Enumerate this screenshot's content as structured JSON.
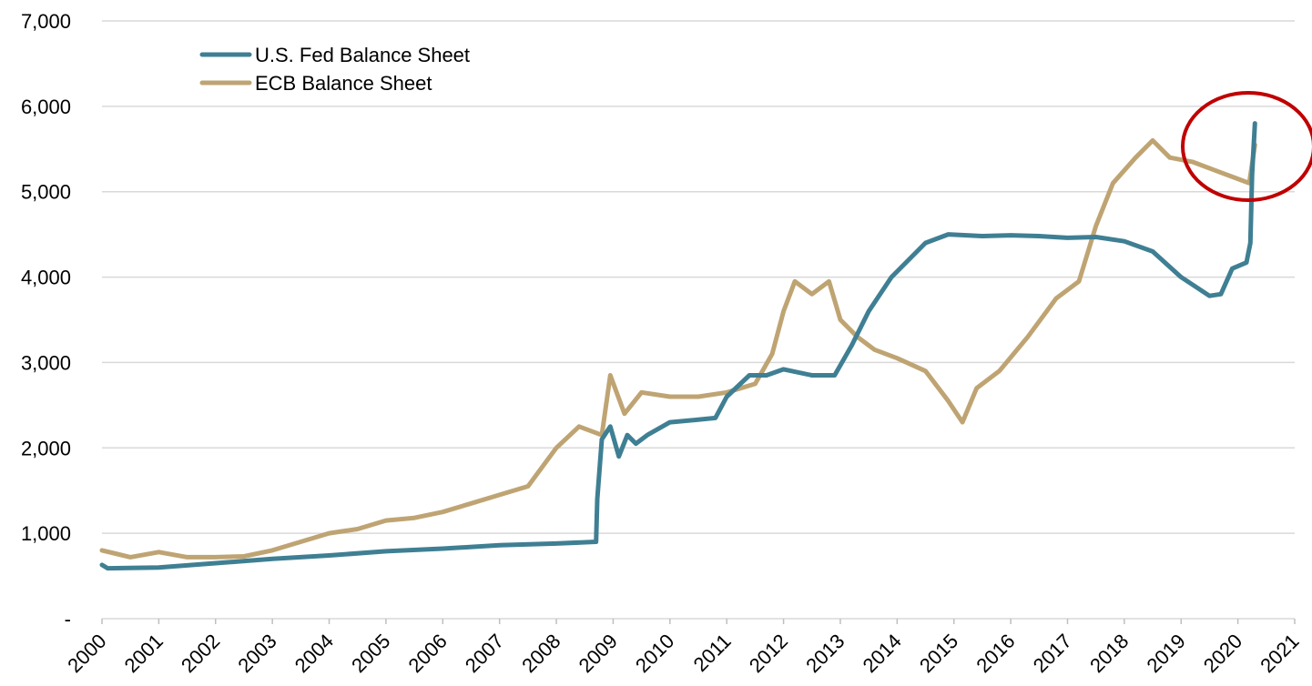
{
  "chart_data": {
    "type": "line",
    "xlim": [
      2000,
      2021
    ],
    "xticks": [
      2000,
      2001,
      2002,
      2003,
      2004,
      2005,
      2006,
      2007,
      2008,
      2009,
      2010,
      2011,
      2012,
      2013,
      2014,
      2015,
      2016,
      2017,
      2018,
      2019,
      2020,
      2021
    ],
    "ylim": [
      0,
      7000
    ],
    "yticks": [
      {
        "value": 0,
        "label": "-"
      },
      {
        "value": 1000,
        "label": "1,000"
      },
      {
        "value": 2000,
        "label": "2,000"
      },
      {
        "value": 3000,
        "label": "3,000"
      },
      {
        "value": 4000,
        "label": "4,000"
      },
      {
        "value": 5000,
        "label": "5,000"
      },
      {
        "value": 6000,
        "label": "6,000"
      },
      {
        "value": 7000,
        "label": "7,000"
      }
    ],
    "grid": true,
    "legend": "top-left",
    "series": [
      {
        "name": "U.S. Fed Balance Sheet",
        "color": "#3f7f93",
        "x": [
          2000.0,
          2000.1,
          2001.0,
          2002.0,
          2003.0,
          2004.0,
          2005.0,
          2006.0,
          2007.0,
          2008.0,
          2008.7,
          2008.72,
          2008.8,
          2008.95,
          2009.1,
          2009.25,
          2009.4,
          2009.6,
          2010.0,
          2010.5,
          2010.8,
          2011.0,
          2011.4,
          2011.7,
          2012.0,
          2012.5,
          2012.9,
          2013.2,
          2013.5,
          2013.9,
          2014.5,
          2014.9,
          2015.5,
          2016.0,
          2016.5,
          2017.0,
          2017.5,
          2018.0,
          2018.5,
          2019.0,
          2019.5,
          2019.7,
          2019.9,
          2020.15,
          2020.22,
          2020.25,
          2020.3
        ],
        "values": [
          630,
          590,
          600,
          650,
          700,
          740,
          790,
          820,
          860,
          880,
          900,
          1400,
          2100,
          2250,
          1900,
          2150,
          2050,
          2150,
          2300,
          2330,
          2350,
          2600,
          2850,
          2850,
          2920,
          2850,
          2850,
          3200,
          3600,
          4000,
          4400,
          4500,
          4480,
          4490,
          4480,
          4460,
          4470,
          4420,
          4300,
          4000,
          3780,
          3800,
          4100,
          4170,
          4400,
          5200,
          5800
        ]
      },
      {
        "name": "ECB Balance Sheet",
        "color": "#bfa473",
        "x": [
          2000.0,
          2000.5,
          2001.0,
          2001.5,
          2002.0,
          2002.5,
          2003.0,
          2003.5,
          2004.0,
          2004.5,
          2005.0,
          2005.5,
          2006.0,
          2006.5,
          2007.0,
          2007.5,
          2008.0,
          2008.4,
          2008.8,
          2008.95,
          2009.2,
          2009.5,
          2010.0,
          2010.5,
          2011.0,
          2011.5,
          2011.8,
          2012.0,
          2012.2,
          2012.5,
          2012.8,
          2013.0,
          2013.3,
          2013.6,
          2014.0,
          2014.5,
          2014.9,
          2015.15,
          2015.4,
          2015.8,
          2016.3,
          2016.8,
          2017.2,
          2017.5,
          2017.8,
          2018.2,
          2018.5,
          2018.8,
          2019.2,
          2019.6,
          2020.0,
          2020.2,
          2020.3
        ],
        "values": [
          800,
          720,
          780,
          720,
          720,
          730,
          800,
          900,
          1000,
          1050,
          1150,
          1180,
          1250,
          1350,
          1450,
          1550,
          2000,
          2250,
          2150,
          2850,
          2400,
          2650,
          2600,
          2600,
          2650,
          2750,
          3100,
          3600,
          3950,
          3800,
          3950,
          3500,
          3300,
          3150,
          3050,
          2900,
          2550,
          2300,
          2700,
          2900,
          3300,
          3750,
          3950,
          4600,
          5100,
          5400,
          5600,
          5400,
          5350,
          5250,
          5150,
          5100,
          5550
        ]
      }
    ]
  }
}
